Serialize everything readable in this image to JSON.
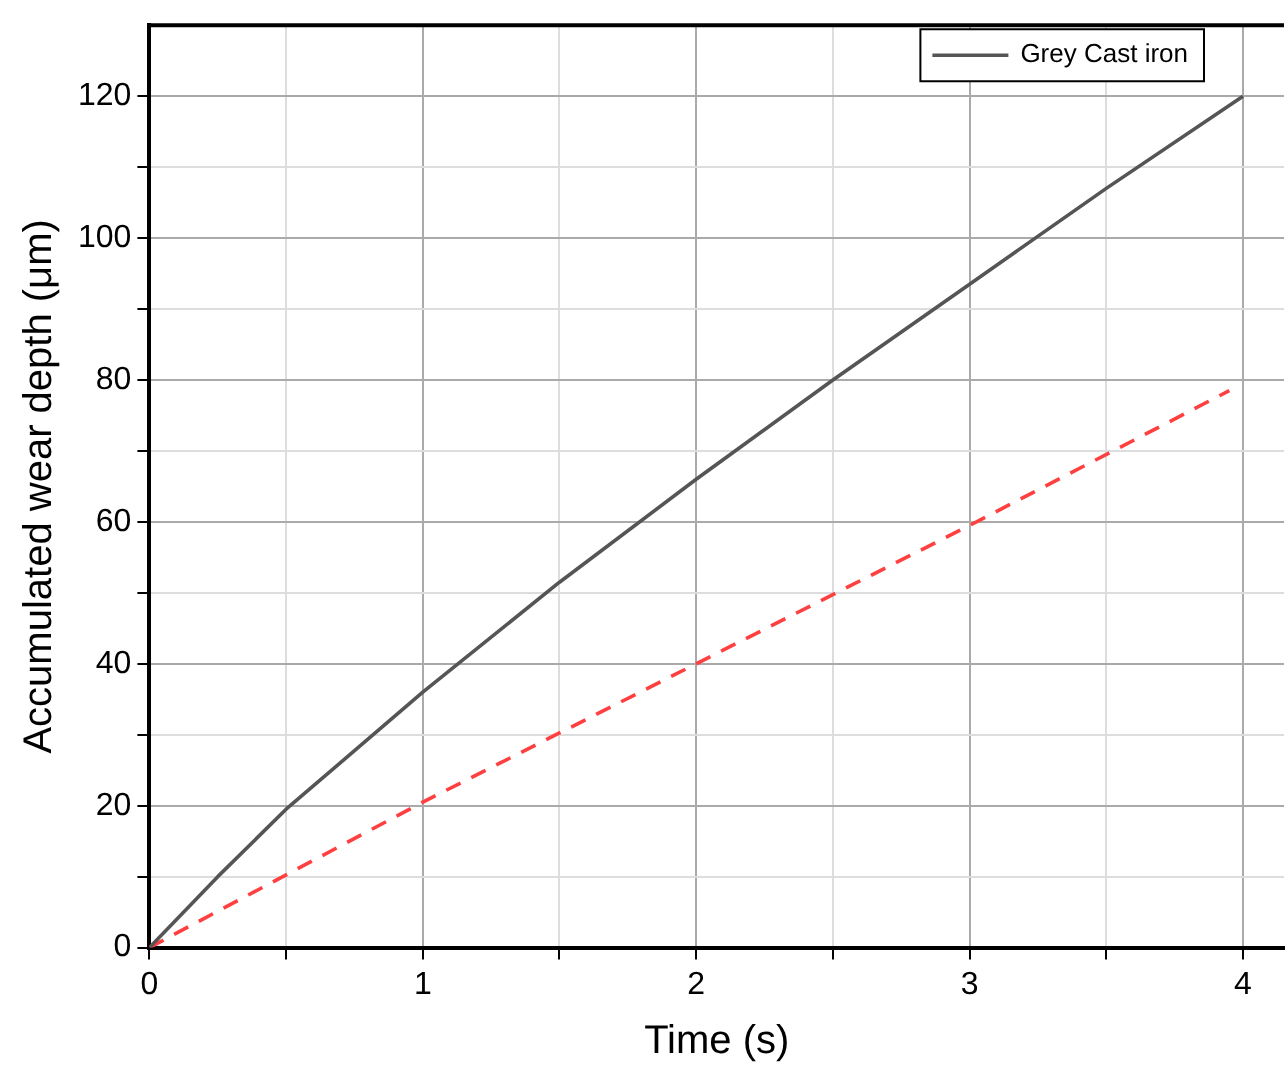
{
  "chart_data": {
    "type": "line",
    "xlabel": "Time (s)",
    "ylabel": "Accumulated wear depth (μm)",
    "xlim": [
      0,
      4.15
    ],
    "ylim": [
      0,
      130
    ],
    "xticks": [
      0,
      {
        "value": 0.5,
        "label": null
      },
      1,
      {
        "value": 1.5,
        "label": null
      },
      2,
      {
        "value": 2.5,
        "label": null
      },
      3,
      {
        "value": 3.5,
        "label": null
      },
      4
    ],
    "yticks": [
      0,
      {
        "value": 10,
        "label": null
      },
      20,
      {
        "value": 30,
        "label": null
      },
      40,
      {
        "value": 50,
        "label": null
      },
      60,
      {
        "value": 70,
        "label": null
      },
      80,
      {
        "value": 90,
        "label": null
      },
      100,
      {
        "value": 110,
        "label": null
      },
      120
    ],
    "grid": true,
    "legend": "top right",
    "marker": "none",
    "series": [
      {
        "name": "Grey Cast iron",
        "color": "#555555",
        "line_style": "solid",
        "x": [
          0,
          0.25,
          0.5,
          1,
          1.5,
          2,
          2.5,
          3,
          3.5,
          4
        ],
        "values": [
          0,
          10,
          19.5,
          36,
          51.5,
          66,
          80,
          93.5,
          107,
          120
        ]
      },
      {
        "color": "#ff4040",
        "line_style": "dashed",
        "x": [
          0,
          1,
          2,
          3,
          3.95
        ],
        "values": [
          0,
          20.5,
          40,
          59.5,
          78.5
        ]
      }
    ]
  }
}
